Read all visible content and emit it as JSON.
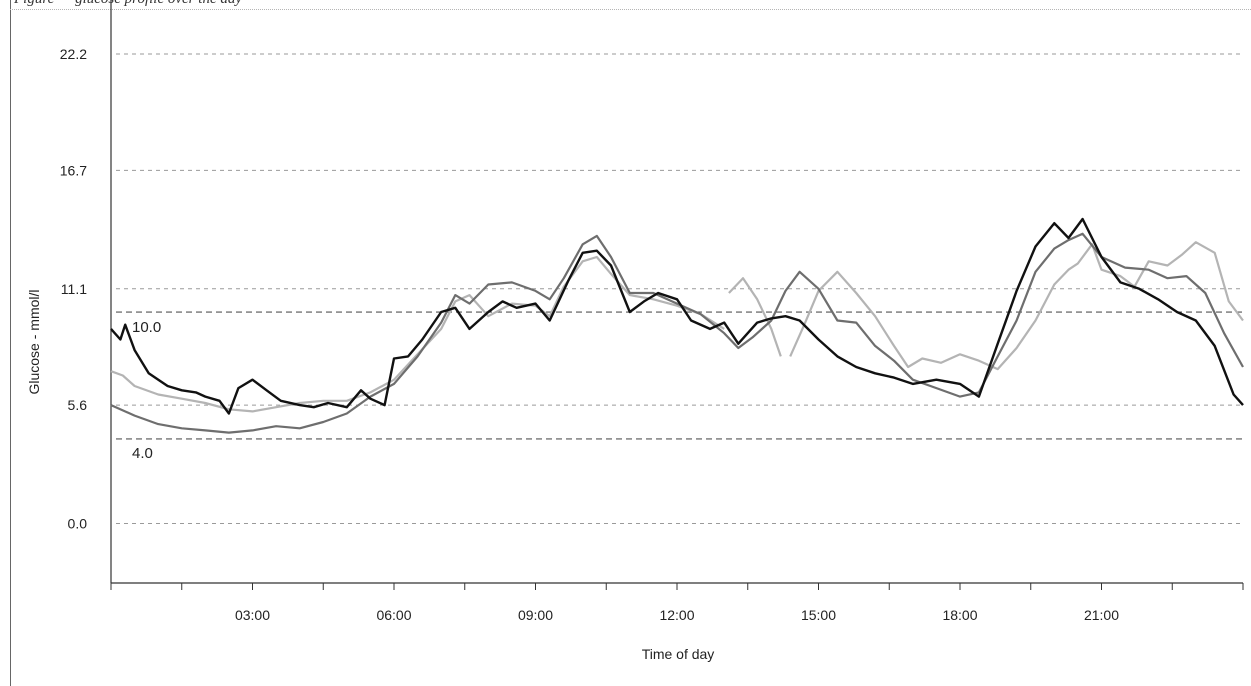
{
  "caption": "Figure — glucose profile over the day",
  "chart_data": {
    "type": "line",
    "xlabel": "Time of day",
    "ylabel": "Glucose - mmol/l",
    "xlim": [
      0,
      24
    ],
    "ylim": [
      -5.2,
      22.2
    ],
    "x_ticks": [
      {
        "x": 3,
        "label": "03:00"
      },
      {
        "x": 6,
        "label": "06:00"
      },
      {
        "x": 9,
        "label": "09:00"
      },
      {
        "x": 12,
        "label": "12:00"
      },
      {
        "x": 15,
        "label": "15:00"
      },
      {
        "x": 18,
        "label": "18:00"
      },
      {
        "x": 21,
        "label": "21:00"
      }
    ],
    "y_ticks": [
      {
        "y": 0.0,
        "label": "0.0"
      },
      {
        "y": 5.6,
        "label": "5.6"
      },
      {
        "y": 11.1,
        "label": "11.1"
      },
      {
        "y": 16.7,
        "label": "16.7"
      },
      {
        "y": 22.2,
        "label": "22.2"
      }
    ],
    "grid": "horizontal dashed",
    "reference_lines": [
      {
        "y": 10.0,
        "label": "10.0",
        "color": "#555555"
      },
      {
        "y": 4.0,
        "label": "4.0",
        "color": "#555555"
      }
    ],
    "series": [
      {
        "color": "#b4b4b4",
        "segments": [
          [
            [
              0,
              7.2
            ],
            [
              0.25,
              7.0
            ],
            [
              0.5,
              6.5
            ],
            [
              1,
              6.1
            ],
            [
              1.5,
              5.9
            ],
            [
              2,
              5.7
            ],
            [
              2.5,
              5.4
            ],
            [
              3,
              5.3
            ],
            [
              3.5,
              5.5
            ],
            [
              4,
              5.7
            ],
            [
              4.5,
              5.8
            ],
            [
              5,
              5.8
            ],
            [
              5.5,
              6.2
            ],
            [
              6,
              6.8
            ],
            [
              6.5,
              8.0
            ],
            [
              7,
              9.2
            ],
            [
              7.3,
              10.5
            ],
            [
              7.6,
              10.8
            ],
            [
              8,
              9.8
            ],
            [
              8.5,
              10.4
            ],
            [
              9,
              10.3
            ],
            [
              9.3,
              9.8
            ],
            [
              9.6,
              11.2
            ],
            [
              10,
              12.4
            ],
            [
              10.3,
              12.6
            ],
            [
              10.6,
              11.8
            ],
            [
              11,
              10.8
            ],
            [
              11.5,
              10.6
            ],
            [
              12,
              10.3
            ],
            [
              12.5,
              9.9
            ],
            [
              13,
              9.2
            ]
          ],
          [
            [
              13.1,
              10.9
            ],
            [
              13.4,
              11.6
            ],
            [
              13.7,
              10.6
            ],
            [
              14,
              9.2
            ],
            [
              14.2,
              7.9
            ]
          ],
          [
            [
              14.4,
              7.9
            ],
            [
              14.7,
              9.4
            ],
            [
              15,
              11.0
            ],
            [
              15.4,
              11.9
            ],
            [
              15.8,
              10.9
            ],
            [
              16.2,
              9.8
            ],
            [
              16.6,
              8.4
            ],
            [
              16.9,
              7.4
            ],
            [
              17.2,
              7.8
            ],
            [
              17.6,
              7.6
            ],
            [
              18,
              8.0
            ],
            [
              18.4,
              7.7
            ],
            [
              18.8,
              7.3
            ],
            [
              19.2,
              8.3
            ],
            [
              19.6,
              9.6
            ],
            [
              20,
              11.3
            ],
            [
              20.3,
              12.0
            ],
            [
              20.5,
              12.3
            ],
            [
              20.8,
              13.2
            ],
            [
              21,
              12.0
            ],
            [
              21.4,
              11.7
            ],
            [
              21.7,
              11.2
            ],
            [
              22,
              12.4
            ],
            [
              22.4,
              12.2
            ],
            [
              22.7,
              12.7
            ],
            [
              23,
              13.3
            ],
            [
              23.4,
              12.8
            ],
            [
              23.7,
              10.5
            ],
            [
              24,
              9.6
            ]
          ]
        ]
      },
      {
        "color": "#6e6e6e",
        "segments": [
          [
            [
              0,
              5.6
            ],
            [
              0.5,
              5.1
            ],
            [
              1,
              4.7
            ],
            [
              1.5,
              4.5
            ],
            [
              2,
              4.4
            ],
            [
              2.5,
              4.3
            ],
            [
              3,
              4.4
            ],
            [
              3.5,
              4.6
            ],
            [
              4,
              4.5
            ],
            [
              4.5,
              4.8
            ],
            [
              5,
              5.2
            ],
            [
              5.5,
              6.0
            ],
            [
              6,
              6.6
            ],
            [
              6.5,
              7.9
            ],
            [
              7,
              9.5
            ],
            [
              7.3,
              10.8
            ],
            [
              7.6,
              10.4
            ],
            [
              8,
              11.3
            ],
            [
              8.5,
              11.4
            ],
            [
              9,
              11.0
            ],
            [
              9.3,
              10.6
            ],
            [
              9.6,
              11.6
            ],
            [
              10,
              13.2
            ],
            [
              10.3,
              13.6
            ],
            [
              10.6,
              12.6
            ],
            [
              11,
              10.9
            ],
            [
              11.5,
              10.9
            ],
            [
              12,
              10.4
            ],
            [
              12.5,
              9.9
            ],
            [
              13,
              9.0
            ],
            [
              13.3,
              8.3
            ],
            [
              13.6,
              8.8
            ],
            [
              14,
              9.6
            ],
            [
              14.3,
              11.0
            ],
            [
              14.6,
              11.9
            ],
            [
              15,
              11.1
            ],
            [
              15.4,
              9.6
            ],
            [
              15.8,
              9.5
            ],
            [
              16.2,
              8.4
            ],
            [
              16.6,
              7.7
            ],
            [
              17,
              6.8
            ],
            [
              17.5,
              6.4
            ],
            [
              18,
              6.0
            ],
            [
              18.4,
              6.2
            ],
            [
              18.8,
              7.9
            ],
            [
              19.2,
              9.6
            ],
            [
              19.6,
              11.9
            ],
            [
              20,
              13.0
            ],
            [
              20.3,
              13.4
            ],
            [
              20.6,
              13.7
            ],
            [
              21,
              12.6
            ],
            [
              21.5,
              12.1
            ],
            [
              22,
              12.0
            ],
            [
              22.4,
              11.6
            ],
            [
              22.8,
              11.7
            ],
            [
              23.2,
              10.9
            ],
            [
              23.6,
              9.0
            ],
            [
              24,
              7.4
            ]
          ]
        ]
      },
      {
        "color": "#111111",
        "segments": [
          [
            [
              0,
              9.2
            ],
            [
              0.2,
              8.7
            ],
            [
              0.3,
              9.4
            ],
            [
              0.5,
              8.2
            ],
            [
              0.8,
              7.1
            ],
            [
              1.2,
              6.5
            ],
            [
              1.5,
              6.3
            ],
            [
              1.8,
              6.2
            ],
            [
              2,
              6.0
            ],
            [
              2.3,
              5.8
            ],
            [
              2.5,
              5.2
            ],
            [
              2.7,
              6.4
            ],
            [
              3,
              6.8
            ],
            [
              3.3,
              6.3
            ],
            [
              3.6,
              5.8
            ],
            [
              4,
              5.6
            ],
            [
              4.3,
              5.5
            ],
            [
              4.6,
              5.7
            ],
            [
              5,
              5.5
            ],
            [
              5.3,
              6.3
            ],
            [
              5.5,
              5.9
            ],
            [
              5.8,
              5.6
            ],
            [
              6,
              7.8
            ],
            [
              6.3,
              7.9
            ],
            [
              6.6,
              8.7
            ],
            [
              7,
              10.0
            ],
            [
              7.3,
              10.2
            ],
            [
              7.6,
              9.2
            ],
            [
              8,
              10.0
            ],
            [
              8.3,
              10.5
            ],
            [
              8.6,
              10.2
            ],
            [
              9,
              10.4
            ],
            [
              9.3,
              9.6
            ],
            [
              9.7,
              11.5
            ],
            [
              10,
              12.8
            ],
            [
              10.3,
              12.9
            ],
            [
              10.6,
              12.2
            ],
            [
              11,
              10.0
            ],
            [
              11.3,
              10.5
            ],
            [
              11.6,
              10.9
            ],
            [
              12,
              10.6
            ],
            [
              12.3,
              9.6
            ],
            [
              12.7,
              9.2
            ],
            [
              13,
              9.5
            ],
            [
              13.3,
              8.5
            ],
            [
              13.7,
              9.5
            ],
            [
              14,
              9.7
            ],
            [
              14.3,
              9.8
            ],
            [
              14.6,
              9.6
            ],
            [
              15,
              8.7
            ],
            [
              15.4,
              7.9
            ],
            [
              15.8,
              7.4
            ],
            [
              16.2,
              7.1
            ],
            [
              16.6,
              6.9
            ],
            [
              17,
              6.6
            ],
            [
              17.5,
              6.8
            ],
            [
              18,
              6.6
            ],
            [
              18.4,
              6.0
            ],
            [
              18.8,
              8.5
            ],
            [
              19.2,
              11.0
            ],
            [
              19.6,
              13.1
            ],
            [
              20,
              14.2
            ],
            [
              20.3,
              13.5
            ],
            [
              20.6,
              14.4
            ],
            [
              21,
              12.6
            ],
            [
              21.4,
              11.4
            ],
            [
              21.8,
              11.1
            ],
            [
              22.2,
              10.6
            ],
            [
              22.6,
              10.0
            ],
            [
              23,
              9.6
            ],
            [
              23.4,
              8.4
            ],
            [
              23.8,
              6.1
            ],
            [
              24,
              5.6
            ]
          ]
        ]
      }
    ]
  }
}
